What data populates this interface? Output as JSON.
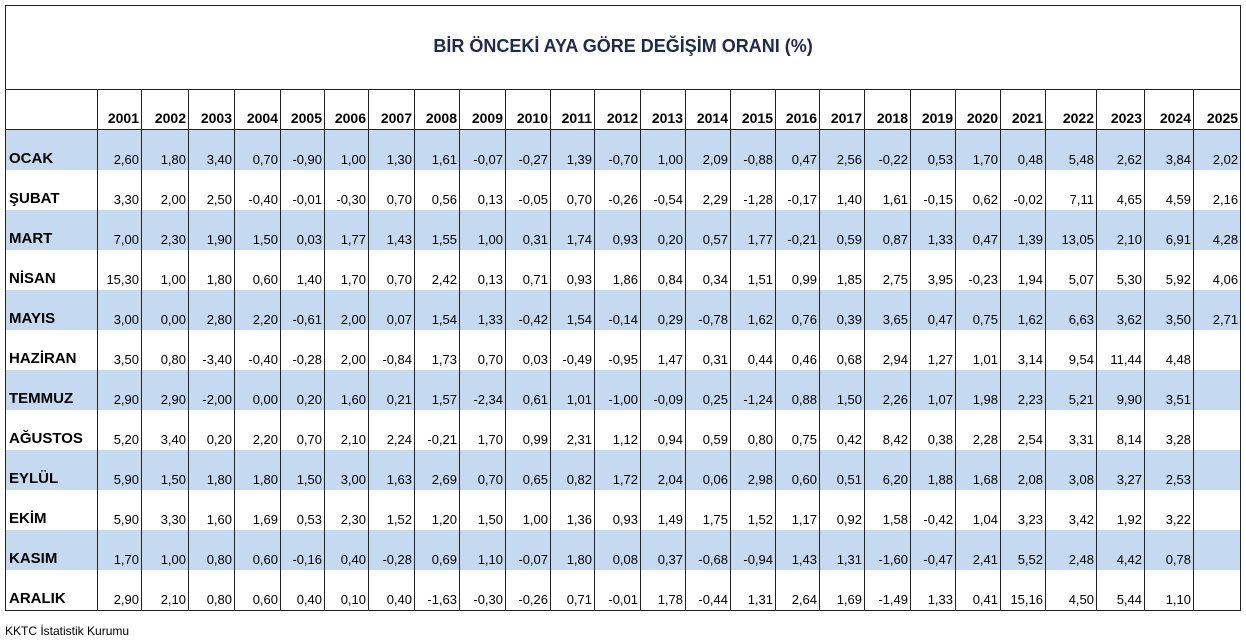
{
  "table": {
    "title": "BİR ÖNCEKİ AYA GÖRE DEĞİŞİM ORANI (%)",
    "columns": [
      "2001",
      "2002",
      "2003",
      "2004",
      "2005",
      "2006",
      "2007",
      "2008",
      "2009",
      "2010",
      "2011",
      "2012",
      "2013",
      "2014",
      "2015",
      "2016",
      "2017",
      "2018",
      "2019",
      "2020",
      "2021",
      "2022",
      "2023",
      "2024",
      "2025"
    ],
    "rows": [
      {
        "label": "OCAK",
        "values": [
          "2,60",
          "1,80",
          "3,40",
          "0,70",
          "-0,90",
          "1,00",
          "1,30",
          "1,61",
          "-0,07",
          "-0,27",
          "1,39",
          "-0,70",
          "1,00",
          "2,09",
          "-0,88",
          "0,47",
          "2,56",
          "-0,22",
          "0,53",
          "1,70",
          "0,48",
          "5,48",
          "2,62",
          "3,84",
          "2,02"
        ]
      },
      {
        "label": "ŞUBAT",
        "values": [
          "3,30",
          "2,00",
          "2,50",
          "-0,40",
          "-0,01",
          "-0,30",
          "0,70",
          "0,56",
          "0,13",
          "-0,05",
          "0,70",
          "-0,26",
          "-0,54",
          "2,29",
          "-1,28",
          "-0,17",
          "1,40",
          "1,61",
          "-0,15",
          "0,62",
          "-0,02",
          "7,11",
          "4,65",
          "4,59",
          "2,16"
        ]
      },
      {
        "label": "MART",
        "values": [
          "7,00",
          "2,30",
          "1,90",
          "1,50",
          "0,03",
          "1,77",
          "1,43",
          "1,55",
          "1,00",
          "0,31",
          "1,74",
          "0,93",
          "0,20",
          "0,57",
          "1,77",
          "-0,21",
          "0,59",
          "0,87",
          "1,33",
          "0,47",
          "1,39",
          "13,05",
          "2,10",
          "6,91",
          "4,28"
        ]
      },
      {
        "label": "NİSAN",
        "values": [
          "15,30",
          "1,00",
          "1,80",
          "0,60",
          "1,40",
          "1,70",
          "0,70",
          "2,42",
          "0,13",
          "0,71",
          "0,93",
          "1,86",
          "0,84",
          "0,34",
          "1,51",
          "0,99",
          "1,85",
          "2,75",
          "3,95",
          "-0,23",
          "1,94",
          "5,07",
          "5,30",
          "5,92",
          "4,06"
        ]
      },
      {
        "label": "MAYIS",
        "values": [
          "3,00",
          "0,00",
          "2,80",
          "2,20",
          "-0,61",
          "2,00",
          "0,07",
          "1,54",
          "1,33",
          "-0,42",
          "1,54",
          "-0,14",
          "0,29",
          "-0,78",
          "1,62",
          "0,76",
          "0,39",
          "3,65",
          "0,47",
          "0,75",
          "1,62",
          "6,63",
          "3,62",
          "3,50",
          "2,71"
        ]
      },
      {
        "label": "HAZİRAN",
        "values": [
          "3,50",
          "0,80",
          "-3,40",
          "-0,40",
          "-0,28",
          "2,00",
          "-0,84",
          "1,73",
          "0,70",
          "0,03",
          "-0,49",
          "-0,95",
          "1,47",
          "0,31",
          "0,44",
          "0,46",
          "0,68",
          "2,94",
          "1,27",
          "1,01",
          "3,14",
          "9,54",
          "11,44",
          "4,48",
          null
        ]
      },
      {
        "label": "TEMMUZ",
        "values": [
          "2,90",
          "2,90",
          "-2,00",
          "0,00",
          "0,20",
          "1,60",
          "0,21",
          "1,57",
          "-2,34",
          "0,61",
          "1,01",
          "-1,00",
          "-0,09",
          "0,25",
          "-1,24",
          "0,88",
          "1,50",
          "2,26",
          "1,07",
          "1,98",
          "2,23",
          "5,21",
          "9,90",
          "3,51",
          null
        ]
      },
      {
        "label": "AĞUSTOS",
        "values": [
          "5,20",
          "3,40",
          "0,20",
          "2,20",
          "0,70",
          "2,10",
          "2,24",
          "-0,21",
          "1,70",
          "0,99",
          "2,31",
          "1,12",
          "0,94",
          "0,59",
          "0,80",
          "0,75",
          "0,42",
          "8,42",
          "0,38",
          "2,28",
          "2,54",
          "3,31",
          "8,14",
          "3,28",
          null
        ]
      },
      {
        "label": "EYLÜL",
        "values": [
          "5,90",
          "1,50",
          "1,80",
          "1,80",
          "1,50",
          "3,00",
          "1,63",
          "2,69",
          "0,70",
          "0,65",
          "0,82",
          "1,72",
          "2,04",
          "0,06",
          "2,98",
          "0,60",
          "0,51",
          "6,20",
          "1,88",
          "1,68",
          "2,08",
          "3,08",
          "3,27",
          "2,53",
          null
        ]
      },
      {
        "label": "EKİM",
        "values": [
          "5,90",
          "3,30",
          "1,60",
          "1,69",
          "0,53",
          "2,30",
          "1,52",
          "1,20",
          "1,50",
          "1,00",
          "1,36",
          "0,93",
          "1,49",
          "1,75",
          "1,52",
          "1,17",
          "0,92",
          "1,58",
          "-0,42",
          "1,04",
          "3,23",
          "3,42",
          "1,92",
          "3,22",
          null
        ]
      },
      {
        "label": "KASIM",
        "values": [
          "1,70",
          "1,00",
          "0,80",
          "0,60",
          "-0,16",
          "0,40",
          "-0,28",
          "0,69",
          "1,10",
          "-0,07",
          "1,80",
          "0,08",
          "0,37",
          "-0,68",
          "-0,94",
          "1,43",
          "1,31",
          "-1,60",
          "-0,47",
          "2,41",
          "5,52",
          "2,48",
          "4,42",
          "0,78",
          null
        ]
      },
      {
        "label": "ARALIK",
        "values": [
          "2,90",
          "2,10",
          "0,80",
          "0,60",
          "0,40",
          "0,10",
          "0,40",
          "-1,63",
          "-0,30",
          "-0,26",
          "0,71",
          "-0,01",
          "1,78",
          "-0,44",
          "1,31",
          "2,64",
          "1,69",
          "-1,49",
          "1,33",
          "0,41",
          "15,16",
          "4,50",
          "5,44",
          "1,10",
          null
        ]
      }
    ]
  },
  "footer": "KKTC İstatistik Kurumu"
}
